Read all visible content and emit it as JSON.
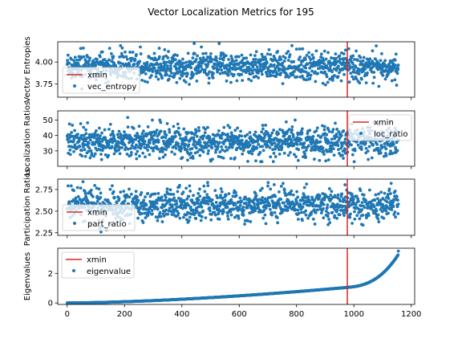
{
  "figure": {
    "title": "Vector Localization Metrics for 195"
  },
  "colors": {
    "points": "#1f77b4",
    "xmin_line": "#d62728",
    "axes": "#000000"
  },
  "chart_data": [
    {
      "type": "scatter",
      "panel": 0,
      "ylabel": "Vector Entropies",
      "xlim": [
        -33,
        1212
      ],
      "ylim": [
        3.6,
        4.23
      ],
      "yticks": [
        3.75,
        4.0
      ],
      "ytick_labels": [
        "3.75",
        "4.00"
      ],
      "xtick_labels": [],
      "n_points": 1156,
      "pattern": {
        "center": 3.95,
        "spread": 0.08,
        "min": 3.66,
        "max": 4.21
      },
      "xmin": 977,
      "legend": {
        "position": "lower-left",
        "entries": [
          "xmin",
          "vec_entropy"
        ]
      }
    },
    {
      "type": "scatter",
      "panel": 1,
      "ylabel": "Localization Ratios",
      "xlim": [
        -33,
        1212
      ],
      "ylim": [
        20,
        56
      ],
      "yticks": [
        30,
        40,
        50
      ],
      "ytick_labels": [
        "30",
        "40",
        "50"
      ],
      "xtick_labels": [],
      "n_points": 1156,
      "pattern": {
        "center": 36,
        "spread": 5,
        "min": 23,
        "max": 54
      },
      "xmin": 977,
      "legend": {
        "position": "upper-right",
        "entries": [
          "xmin",
          "loc_ratio"
        ]
      }
    },
    {
      "type": "scatter",
      "panel": 2,
      "ylabel": "Participation Ratios",
      "xlim": [
        -33,
        1212
      ],
      "ylim": [
        2.22,
        2.87
      ],
      "yticks": [
        2.25,
        2.5,
        2.75
      ],
      "ytick_labels": [
        "2.25",
        "2.50",
        "2.75"
      ],
      "xtick_labels": [],
      "n_points": 1156,
      "pattern": {
        "center": 2.57,
        "spread": 0.09,
        "min": 2.26,
        "max": 2.84
      },
      "xmin": 977,
      "legend": {
        "position": "lower-left",
        "entries": [
          "xmin",
          "part_ratio"
        ]
      }
    },
    {
      "type": "scatter",
      "panel": 3,
      "ylabel": "Eigenvalues",
      "xlim": [
        -33,
        1212
      ],
      "ylim": [
        -0.1,
        3.7
      ],
      "yticks": [
        0,
        2
      ],
      "ytick_labels": [
        "0",
        "2"
      ],
      "xticks": [
        0,
        200,
        400,
        600,
        800,
        1000,
        1200
      ],
      "xtick_labels": [
        "0",
        "200",
        "400",
        "600",
        "800",
        "1000",
        "1200"
      ],
      "n_points": 1156,
      "pattern": {
        "min": 0.0,
        "max": 3.5,
        "at_x_977": 1.05
      },
      "xmin": 977,
      "legend": {
        "position": "upper-left",
        "entries": [
          "xmin",
          "eigenvalue"
        ]
      }
    }
  ]
}
